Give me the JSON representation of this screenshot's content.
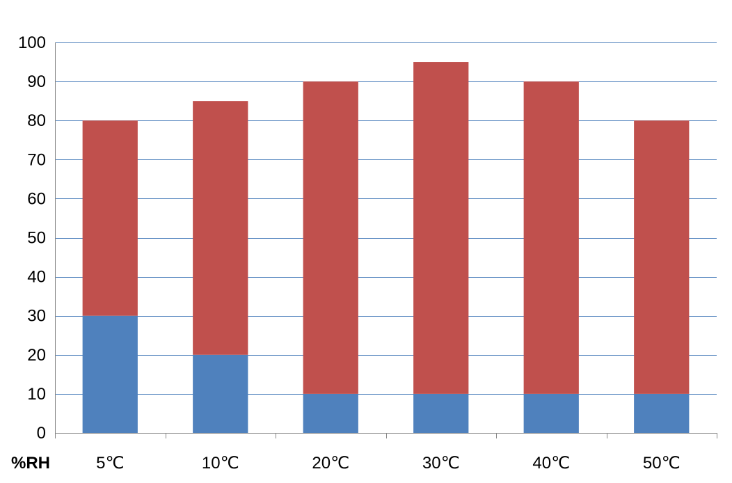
{
  "chart_data": {
    "type": "bar",
    "stacked": true,
    "categories": [
      "5℃",
      "10℃",
      "20℃",
      "30℃",
      "40℃",
      "50℃"
    ],
    "series": [
      {
        "color": "#4F81BD",
        "values": [
          30,
          20,
          10,
          10,
          10,
          10
        ]
      },
      {
        "color": "#C0504D",
        "values": [
          50,
          65,
          80,
          85,
          80,
          70
        ]
      }
    ],
    "xlabel": "%RH",
    "ylabel": "",
    "ylim": [
      0,
      100
    ],
    "yticks": [
      0,
      10,
      20,
      30,
      40,
      50,
      60,
      70,
      80,
      90,
      100
    ],
    "grid": true,
    "legend": "none",
    "gridline_color": "#4A7EBB",
    "axis_color": "#868686"
  }
}
